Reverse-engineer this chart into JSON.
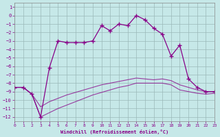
{
  "xlabel": "Windchill (Refroidissement éolien,°C)",
  "xlim": [
    0,
    23
  ],
  "ylim": [
    -12.5,
    1.5
  ],
  "xtick_vals": [
    0,
    1,
    2,
    3,
    4,
    5,
    6,
    7,
    8,
    9,
    10,
    11,
    12,
    13,
    14,
    15,
    16,
    17,
    18,
    19,
    20,
    21,
    22,
    23
  ],
  "ytick_vals": [
    1,
    0,
    -1,
    -2,
    -3,
    -4,
    -5,
    -6,
    -7,
    -8,
    -9,
    -10,
    -11,
    -12
  ],
  "background_color": "#c6e8e8",
  "grid_color": "#9ab8b8",
  "line_color": "#880088",
  "hours": [
    0,
    1,
    2,
    3,
    4,
    5,
    6,
    7,
    8,
    9,
    10,
    11,
    12,
    13,
    14,
    15,
    16,
    17,
    18,
    19,
    20,
    21,
    22,
    23
  ],
  "main_line": [
    -8.5,
    -8.5,
    -9.3,
    -12.0,
    -6.2,
    -3.0,
    -3.2,
    -3.2,
    -3.2,
    -3.0,
    -1.2,
    -1.8,
    -1.0,
    -1.2,
    0.0,
    -0.5,
    -1.5,
    -2.2,
    -4.8,
    -3.5,
    -7.5,
    -8.5,
    -9.0,
    -9.0
  ],
  "lower_line1": [
    -8.5,
    -8.5,
    -9.3,
    -10.8,
    -10.2,
    -9.8,
    -9.4,
    -9.1,
    -8.8,
    -8.5,
    -8.2,
    -8.0,
    -7.8,
    -7.6,
    -7.4,
    -7.5,
    -7.6,
    -7.5,
    -7.7,
    -8.2,
    -8.5,
    -8.8,
    -9.0,
    -9.0
  ],
  "lower_line2": [
    -8.5,
    -8.5,
    -9.3,
    -12.0,
    -11.5,
    -11.0,
    -10.6,
    -10.2,
    -9.8,
    -9.4,
    -9.1,
    -8.8,
    -8.5,
    -8.3,
    -8.0,
    -8.0,
    -8.0,
    -8.0,
    -8.2,
    -8.8,
    -9.0,
    -9.2,
    -9.3,
    -9.2
  ]
}
